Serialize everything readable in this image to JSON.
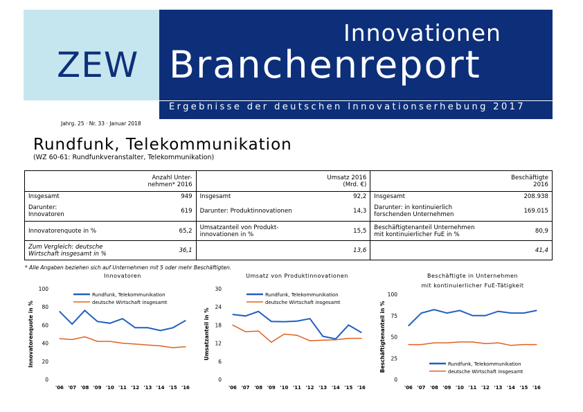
{
  "header": {
    "logo": "ZEW",
    "line1": "Innovationen",
    "line2": "Branchenreport",
    "subline": "Ergebnisse der deutschen Innovationserhebung 2017",
    "issue": "Jahrg. 25 · Nr. 33 · Januar 2018",
    "colors": {
      "navy": "#0d2f7a",
      "light": "#c5e6ef"
    }
  },
  "page": {
    "title": "Rundfunk, Telekommunikation",
    "subtitle": "(WZ 60-61: Rundfunkveranstalter, Telekommunikation)",
    "footnote": "* Alle Angaben beziehen sich auf Unternehmen mit 5 oder mehr Beschäftigten."
  },
  "table": {
    "headers": [
      "Anzahl Unter-\nnehmen* 2016",
      "Umsatz 2016\n(Mrd. €)",
      "Beschäftigte\n2016"
    ],
    "rows": [
      [
        {
          "label": "Insgesamt",
          "value": "949"
        },
        {
          "label": "Insgesamt",
          "value": "92,2"
        },
        {
          "label": "Insgesamt",
          "value": "208.938"
        }
      ],
      [
        {
          "label": "Darunter:\nInnovatoren",
          "value": "619"
        },
        {
          "label": "Darunter: Produktinnovationen",
          "value": "14,3"
        },
        {
          "label": "Darunter: in kontinuierlich\nforschenden Unternehmen",
          "value": "169.015"
        }
      ],
      [
        {
          "label": "Innovatorenquote in %",
          "value": "65,2"
        },
        {
          "label": "Umsatzanteil von Produkt-\ninnovationen in %",
          "value": "15,5"
        },
        {
          "label": "Beschäftigtenanteil Unternehmen\nmit kontinuierlicher FuE in %",
          "value": "80,9"
        }
      ],
      [
        {
          "label": "Zum Vergleich: deutsche\nWirtschaft insgesamt in %",
          "value": "36,1"
        },
        {
          "label": "",
          "value": "13,6"
        },
        {
          "label": "",
          "value": "41,4"
        }
      ]
    ]
  },
  "chart_data": [
    {
      "type": "line",
      "title": "Innovatoren",
      "ylabel": "Innovatorenquote in %",
      "ylim": [
        0,
        100
      ],
      "yticks": [
        0,
        20,
        40,
        60,
        80,
        100
      ],
      "categories": [
        "'06",
        "'07",
        "'08",
        "'09",
        "'10",
        "'11",
        "'12",
        "'13",
        "'14",
        "'15",
        "'16"
      ],
      "legend_position": "top",
      "series": [
        {
          "name": "Rundfunk, Telekommunikation",
          "color": "#1f5fbf",
          "values": [
            75,
            61,
            76,
            64,
            62,
            67,
            57,
            57,
            54,
            57,
            65
          ]
        },
        {
          "name": "deutsche Wirtschaft insgesamt",
          "color": "#e06020",
          "values": [
            45,
            44,
            47,
            42,
            42,
            40,
            39,
            38,
            37,
            35,
            36
          ]
        }
      ]
    },
    {
      "type": "line",
      "title": "Umsatz von Produktinnovationen",
      "ylabel": "Umsatzanteil in %",
      "ylim": [
        0,
        30
      ],
      "yticks": [
        0,
        6,
        12,
        18,
        24,
        30
      ],
      "categories": [
        "'06",
        "'07",
        "'08",
        "'09",
        "'10",
        "'11",
        "'12",
        "'13",
        "'14",
        "'15",
        "'16"
      ],
      "legend_position": "top",
      "series": [
        {
          "name": "Rundfunk, Telekommunikation",
          "color": "#1f5fbf",
          "values": [
            21.5,
            21,
            22.5,
            19.2,
            19.1,
            19.3,
            20.1,
            14.3,
            13.4,
            18,
            15.5
          ]
        },
        {
          "name": "deutsche Wirtschaft insgesamt",
          "color": "#e06020",
          "values": [
            18,
            15.8,
            16,
            12.3,
            15,
            14.6,
            12.8,
            13,
            13.1,
            13.6,
            13.6
          ]
        }
      ]
    },
    {
      "type": "line",
      "title": "Beschäftigte in Unternehmen\nmit kontinuierlicher FuE-Tätigkeit",
      "ylabel": "Beschäftigtenanteil in %",
      "ylim": [
        0,
        100
      ],
      "yticks": [
        0,
        25,
        50,
        75,
        100
      ],
      "categories": [
        "'06",
        "'07",
        "'08",
        "'09",
        "'10",
        "'11",
        "'12",
        "'13",
        "'14",
        "'15",
        "'16"
      ],
      "legend_position": "bottom",
      "series": [
        {
          "name": "Rundfunk, Telekommunikation",
          "color": "#1f5fbf",
          "values": [
            63,
            78,
            82,
            78,
            81,
            75,
            75,
            80,
            78,
            78,
            81
          ]
        },
        {
          "name": "deutsche Wirtschaft insgesamt",
          "color": "#e06020",
          "values": [
            41,
            41,
            43,
            43,
            44,
            44,
            42,
            43,
            40,
            41,
            41
          ]
        }
      ]
    }
  ]
}
